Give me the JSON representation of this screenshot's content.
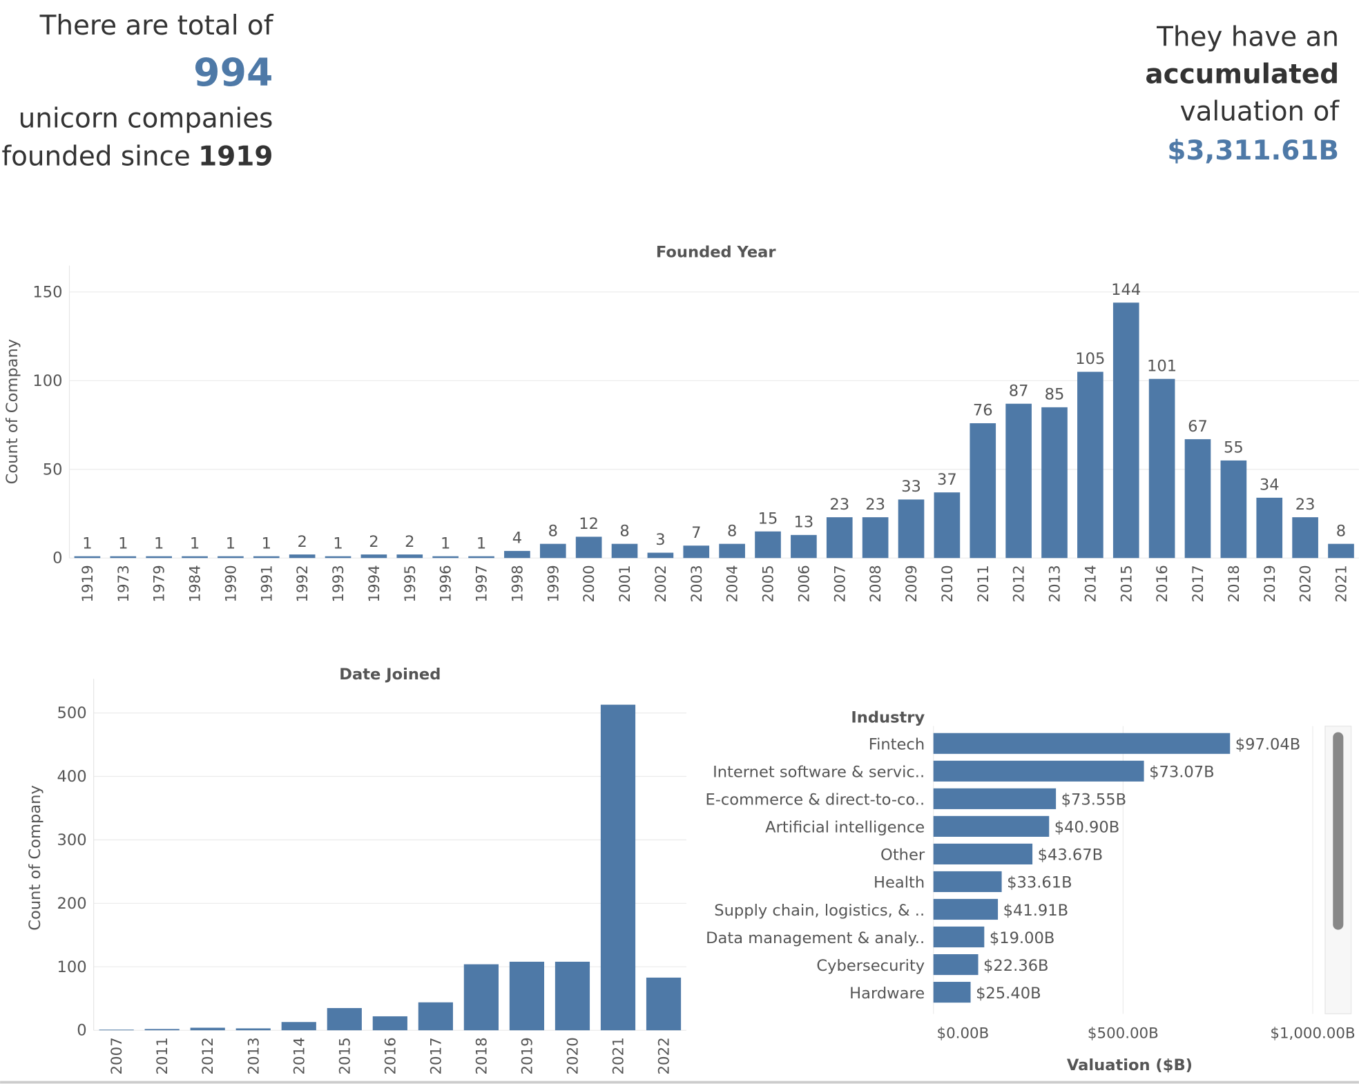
{
  "header": {
    "left": {
      "line1": "There are  total of",
      "count": "994",
      "line3": "unicorn companies",
      "line4": "founded since",
      "year": "1919"
    },
    "right": {
      "line1": "They have an",
      "line2": "accumulated",
      "line3": "valuation of",
      "valuation": "$3,311.61B"
    }
  },
  "chart_data": [
    {
      "type": "bar",
      "title": "Founded Year",
      "y_label": "Count of Company",
      "color": "#4e79a7",
      "grid": true,
      "categories": [
        "1919",
        "1973",
        "1979",
        "1984",
        "1990",
        "1991",
        "1992",
        "1993",
        "1994",
        "1995",
        "1996",
        "1997",
        "1998",
        "1999",
        "2000",
        "2001",
        "2002",
        "2003",
        "2004",
        "2005",
        "2006",
        "2007",
        "2008",
        "2009",
        "2010",
        "2011",
        "2012",
        "2013",
        "2014",
        "2015",
        "2016",
        "2017",
        "2018",
        "2019",
        "2020",
        "2021"
      ],
      "values": [
        1,
        1,
        1,
        1,
        1,
        1,
        2,
        1,
        2,
        2,
        1,
        1,
        4,
        8,
        12,
        8,
        3,
        7,
        8,
        15,
        13,
        23,
        23,
        33,
        37,
        76,
        87,
        85,
        105,
        144,
        101,
        67,
        55,
        34,
        23,
        8
      ],
      "show_value_labels": true,
      "ylim": [
        0,
        160
      ],
      "yticks": [
        0,
        50,
        100,
        150
      ]
    },
    {
      "type": "bar",
      "title": "Date Joined",
      "y_label": "Count of Company",
      "color": "#4e79a7",
      "grid": true,
      "categories": [
        "2007",
        "2011",
        "2012",
        "2013",
        "2014",
        "2015",
        "2016",
        "2017",
        "2018",
        "2019",
        "2020",
        "2021",
        "2022"
      ],
      "values": [
        1,
        2,
        4,
        3,
        13,
        35,
        22,
        44,
        104,
        108,
        108,
        513,
        83
      ],
      "show_value_labels": false,
      "ylim": [
        0,
        540
      ],
      "yticks": [
        0,
        100,
        200,
        300,
        400,
        500
      ]
    },
    {
      "type": "hbar",
      "category_header": "Industry",
      "x_label": "Valuation ($B)",
      "color": "#4e79a7",
      "grid": true,
      "categories": [
        "Fintech",
        "Internet software & servic..",
        "E-commerce & direct-to-co..",
        "Artificial intelligence",
        "Other",
        "Health",
        "Supply chain, logistics, & ..",
        "Data management & analy..",
        "Cybersecurity",
        "Hardware"
      ],
      "values": [
        782,
        555,
        323,
        305,
        261,
        180,
        170,
        134,
        118,
        98
      ],
      "data_labels": [
        {
          "value": 97.04,
          "label": "$97.04B"
        },
        {
          "value": 73.07,
          "label": "$73.07B"
        },
        {
          "value": 73.55,
          "label": "$73.55B"
        },
        {
          "value": 40.9,
          "label": "$40.90B"
        },
        {
          "value": 43.67,
          "label": "$43.67B"
        },
        {
          "value": 33.61,
          "label": "$33.61B"
        },
        {
          "value": 41.91,
          "label": "$41.91B"
        },
        {
          "value": 19.0,
          "label": "$19.00B"
        },
        {
          "value": 22.36,
          "label": "$22.36B"
        },
        {
          "value": 25.4,
          "label": "$25.40B"
        }
      ],
      "xlim": [
        0,
        1035
      ],
      "xticks": [
        {
          "value": 0,
          "label": "$0.00B"
        },
        {
          "value": 500,
          "label": "$500.00B"
        },
        {
          "value": 1000,
          "label": "$1,000.00B"
        }
      ]
    }
  ]
}
